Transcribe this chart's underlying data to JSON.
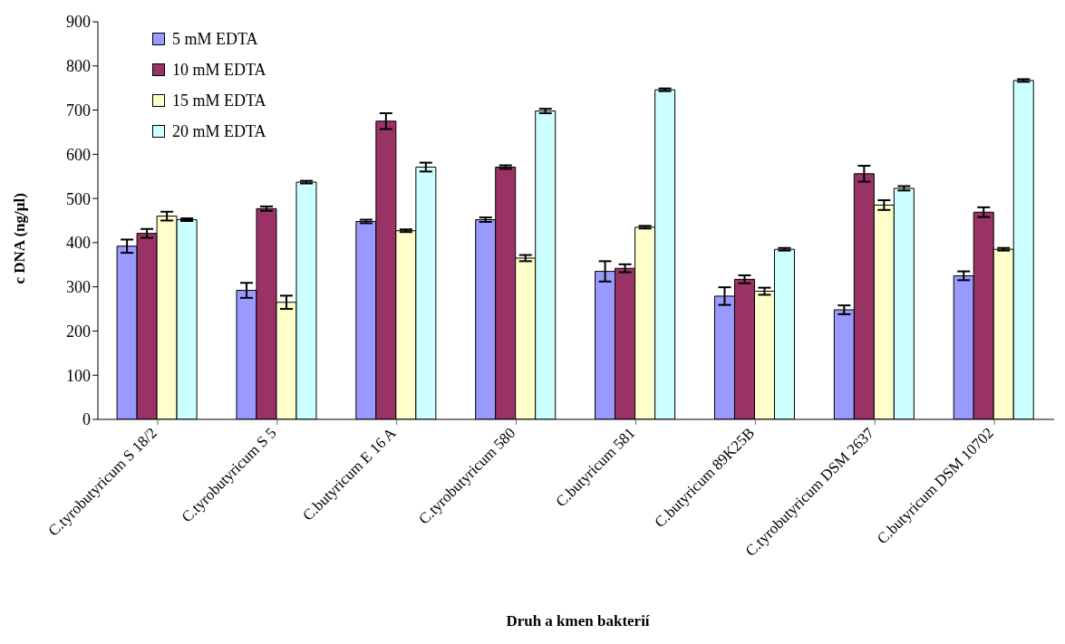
{
  "chart_data": {
    "type": "bar",
    "xlabel": "Druh a kmen bakterií",
    "ylabel": "c DNA (ng/µl)",
    "categories": [
      "C.tyrobutyricum S 18/2",
      "C.tyrobutyricum S 5",
      "C.butyricum E 16 A",
      "C.tyrobutyricum 580",
      "C.butyricum 581",
      "C.butyricum 89K25B",
      "C.tyrobutyricum DSM 2637",
      "C.butyricum DSM 10702"
    ],
    "series": [
      {
        "name": "5 mM EDTA",
        "color": "#9999ff",
        "values": [
          392,
          292,
          448,
          452,
          335,
          279,
          248,
          325
        ],
        "errors": [
          15,
          17,
          4,
          5,
          23,
          20,
          10,
          10
        ]
      },
      {
        "name": "10 mM  EDTA",
        "color": "#993366",
        "values": [
          421,
          477,
          675,
          571,
          342,
          317,
          556,
          469
        ],
        "errors": [
          10,
          5,
          18,
          4,
          9,
          9,
          18,
          11
        ]
      },
      {
        "name": "15 mM  EDTA",
        "color": "#ffffcc",
        "values": [
          460,
          265,
          427,
          365,
          435,
          290,
          485,
          385
        ],
        "errors": [
          10,
          15,
          3,
          7,
          3,
          8,
          11,
          3
        ]
      },
      {
        "name": "20 mM  EDTA",
        "color": "#ccffff",
        "values": [
          452,
          537,
          571,
          698,
          746,
          385,
          523,
          767
        ],
        "errors": [
          3,
          3,
          10,
          5,
          3,
          3,
          5,
          3
        ]
      }
    ],
    "ylim": [
      0,
      900
    ],
    "yticks": [
      0,
      100,
      200,
      300,
      400,
      500,
      600,
      700,
      800,
      900
    ],
    "grid": false,
    "legend": "top left"
  }
}
